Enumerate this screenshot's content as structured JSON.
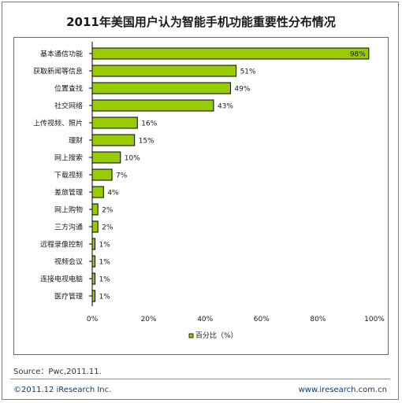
{
  "chart_data": {
    "type": "bar",
    "orientation": "horizontal",
    "title": "2011年美国用户认为智能手机功能重要性分布情况",
    "categories": [
      "基本通信功能",
      "获取新闻等信息",
      "位置查找",
      "社交网络",
      "上传视频、照片",
      "理财",
      "网上搜索",
      "下载视频",
      "差旅管理",
      "网上购物",
      "三方沟通",
      "远程录像控制",
      "视频会议",
      "连接电视电脑",
      "医疗管理"
    ],
    "series": [
      {
        "name": "百分比（%）",
        "values": [
          98,
          51,
          49,
          43,
          16,
          15,
          10,
          7,
          4,
          2,
          2,
          1,
          1,
          1,
          1
        ],
        "labels": [
          "98%",
          "51%",
          "49%",
          "43%",
          "16%",
          "15%",
          "10%",
          "7%",
          "4%",
          "2%",
          "2%",
          "1%",
          "1%",
          "1%",
          "1%"
        ]
      }
    ],
    "xlim": [
      0,
      100
    ],
    "xticks": [
      "0%",
      "20%",
      "40%",
      "60%",
      "80%",
      "100%"
    ],
    "grid": false,
    "legend": "bottom"
  },
  "colors": {
    "bar": "#99cc00",
    "bar_edge": "#000000",
    "link": "#0b3a8c"
  },
  "footer": {
    "source": "Source：Pwc,2011.11.",
    "copyright": "©2011.12 iResearch Inc.",
    "website": "www.iresearch.com.cn"
  }
}
